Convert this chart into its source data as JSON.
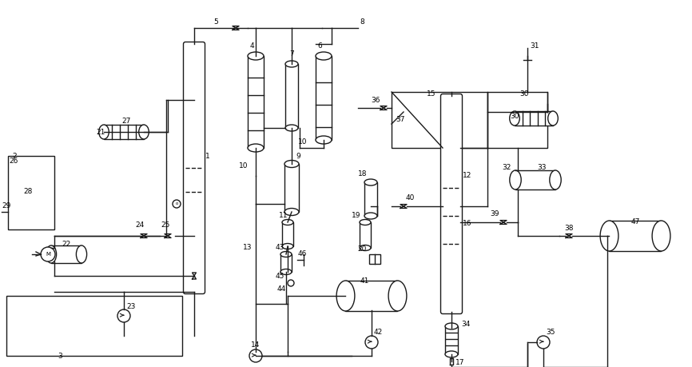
{
  "bg_color": "#ffffff",
  "line_color": "#1a1a1a",
  "fig_width": 8.66,
  "fig_height": 4.59,
  "dpi": 100
}
